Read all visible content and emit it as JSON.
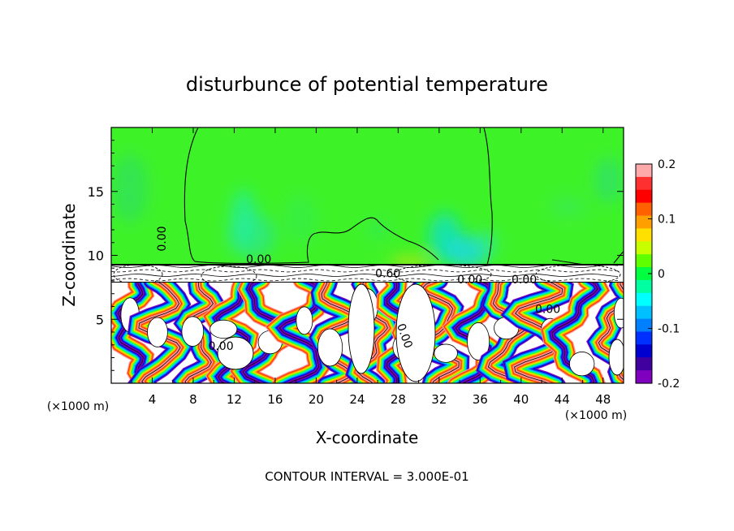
{
  "chart_data": {
    "type": "heatmap",
    "title": "disturbunce of potential temperature",
    "xlabel": "X-coordinate",
    "ylabel": "Z-coordinate",
    "x_unit_left": "(×1000 m)",
    "x_unit_right": "(×1000 m)",
    "x_ticks": [
      4,
      8,
      12,
      16,
      20,
      24,
      28,
      32,
      36,
      40,
      44,
      48
    ],
    "y_ticks": [
      5,
      10,
      15
    ],
    "xlim": [
      0,
      50
    ],
    "ylim": [
      0,
      20
    ],
    "colorbar": {
      "range": [
        -0.2,
        0.2
      ],
      "ticks": [
        "0.2",
        "0.1",
        "0",
        "-0.1",
        "-0.2"
      ],
      "colors": [
        "#ffaaaa",
        "#ff3030",
        "#ff0000",
        "#ff6000",
        "#ffa000",
        "#ffe000",
        "#c8ff00",
        "#60ff00",
        "#00ff40",
        "#00ffa0",
        "#00ffff",
        "#00c0ff",
        "#0080ff",
        "#0030ff",
        "#0000d0",
        "#4000a0",
        "#8000c0"
      ]
    },
    "contour_labels": [
      {
        "text": "0.00",
        "x": 5.3,
        "y": 11.3
      },
      {
        "text": "0.00",
        "x": 14.4,
        "y": 9.4
      },
      {
        "text": "0.60",
        "x": 27.0,
        "y": 8.3
      },
      {
        "text": "0.00",
        "x": 35.0,
        "y": 7.8
      },
      {
        "text": "0.00",
        "x": 40.3,
        "y": 7.8
      },
      {
        "text": "0.00",
        "x": 42.6,
        "y": 5.5
      },
      {
        "text": "0.00",
        "x": 10.7,
        "y": 2.6
      },
      {
        "text": "0.00",
        "x": 28.3,
        "y": 3.6
      }
    ],
    "footer": "CONTOUR INTERVAL = 3.000E-01"
  }
}
